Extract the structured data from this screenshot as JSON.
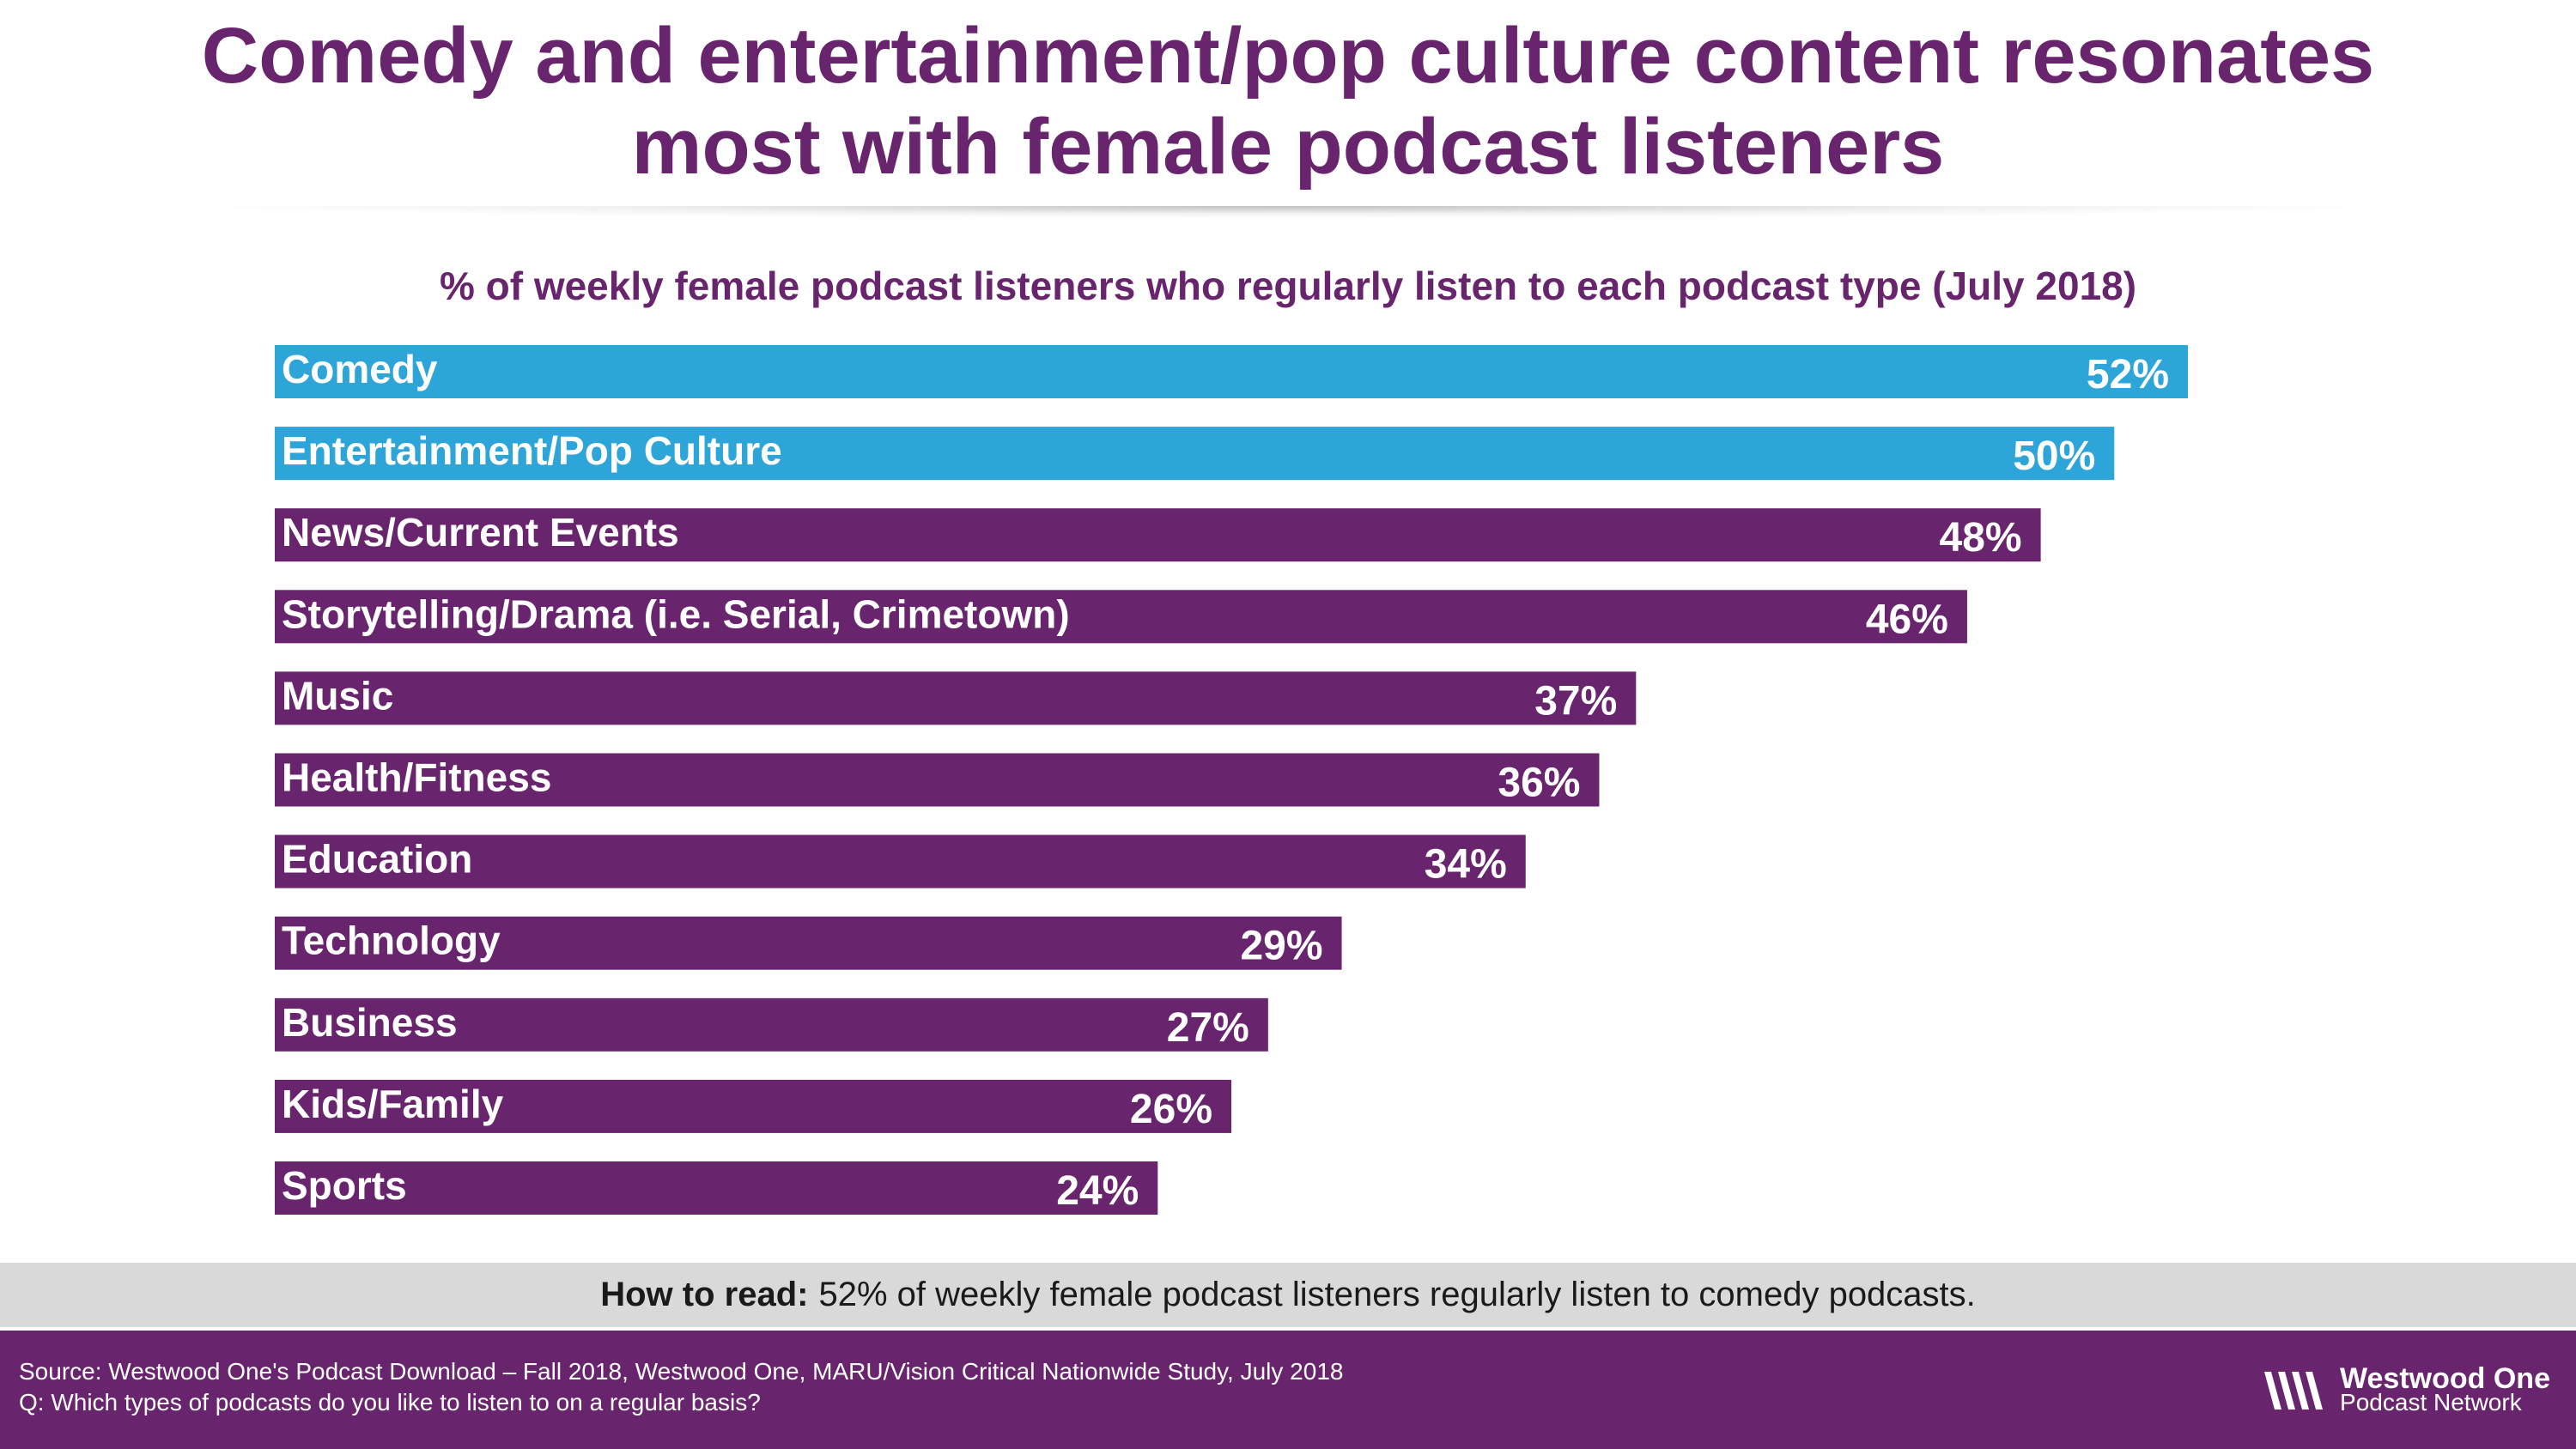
{
  "header": {
    "title_line1": "Comedy and entertainment/pop culture content resonates",
    "title_line2": "most with female podcast listeners"
  },
  "chart_data": {
    "type": "bar",
    "orientation": "horizontal",
    "title": "% of weekly female podcast listeners who regularly listen to each podcast type (July 2018)",
    "categories": [
      "Comedy",
      "Entertainment/Pop Culture",
      "News/Current Events",
      "Storytelling/Drama (i.e. Serial, Crimetown)",
      "Music",
      "Health/Fitness",
      "Education",
      "Technology",
      "Business",
      "Kids/Family",
      "Sports"
    ],
    "values": [
      52,
      50,
      48,
      46,
      37,
      36,
      34,
      29,
      27,
      26,
      24
    ],
    "value_labels": [
      "52%",
      "50%",
      "48%",
      "46%",
      "37%",
      "36%",
      "34%",
      "29%",
      "27%",
      "26%",
      "24%"
    ],
    "highlight_count": 2,
    "colors": {
      "highlight": "#2da5d8",
      "default": "#68246d"
    },
    "xlim": [
      0,
      52
    ],
    "xlabel": "",
    "ylabel": "",
    "grid": false,
    "legend": "none"
  },
  "how_to_read": {
    "label": "How to read:",
    "text": "52% of weekly female podcast listeners regularly listen to comedy podcasts."
  },
  "footer": {
    "source": "Source: Westwood One's Podcast Download – Fall 2018, Westwood One, MARU/Vision Critical Nationwide Study, July 2018",
    "question": "Q: Which types of podcasts do you like to listen to on a regular basis?",
    "logo_name": "Westwood One",
    "logo_sub": "Podcast Network",
    "logo_icon": "westwood-one-wave-logo"
  }
}
